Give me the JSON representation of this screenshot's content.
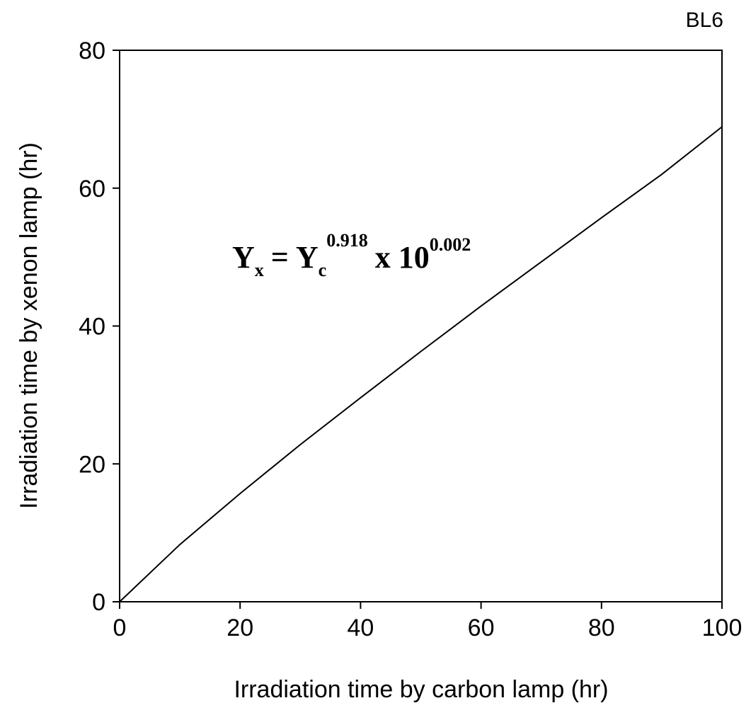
{
  "chart_data": {
    "type": "line",
    "corner_label": "BL6",
    "xlabel": "Irradiation time by carbon lamp (hr)",
    "ylabel": "Irradiation time by xenon lamp (hr)",
    "xlim": [
      0,
      100
    ],
    "ylim": [
      0,
      80
    ],
    "xticks": [
      0,
      20,
      40,
      60,
      80,
      100
    ],
    "yticks": [
      0,
      20,
      40,
      60,
      80
    ],
    "grid": false,
    "series": [
      {
        "x": [
          0,
          10,
          20,
          30,
          40,
          50,
          60,
          70,
          80,
          90,
          100
        ],
        "y": [
          0,
          8.3,
          15.7,
          22.8,
          29.6,
          36.3,
          42.9,
          49.3,
          55.7,
          62.0,
          68.9
        ]
      }
    ],
    "annotation": {
      "base_y": "Y",
      "sub_x": "x",
      "equals": "=",
      "base_c": "Y",
      "sub_c": "c",
      "exp_c": "0.918",
      "times": "x 10",
      "exp_10": "0.002"
    }
  }
}
